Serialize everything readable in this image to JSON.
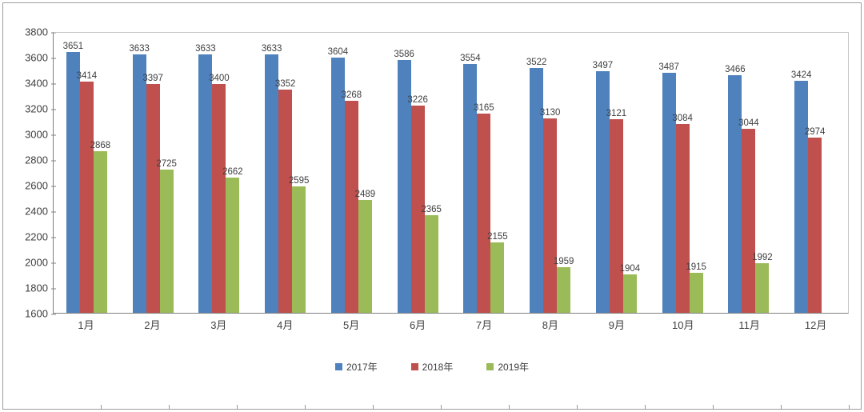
{
  "chart_data": {
    "type": "bar",
    "title": "",
    "categories": [
      "1月",
      "2月",
      "3月",
      "4月",
      "5月",
      "6月",
      "7月",
      "8月",
      "9月",
      "10月",
      "11月",
      "12月"
    ],
    "series": [
      {
        "name": "2017年",
        "color": "#4F81BD",
        "values": [
          3651,
          3633,
          3633,
          3633,
          3604,
          3586,
          3554,
          3522,
          3497,
          3487,
          3466,
          3424
        ]
      },
      {
        "name": "2018年",
        "color": "#C0504D",
        "values": [
          3414,
          3397,
          3400,
          3352,
          3268,
          3226,
          3165,
          3130,
          3121,
          3084,
          3044,
          2974
        ]
      },
      {
        "name": "2019年",
        "color": "#9BBB59",
        "values": [
          2868,
          2725,
          2662,
          2595,
          2489,
          2365,
          2155,
          1959,
          1904,
          1915,
          1992,
          null
        ]
      }
    ],
    "ylim": [
      1600,
      3800
    ],
    "ytick_step": 200,
    "xlabel": "",
    "ylabel": "",
    "grid": false,
    "legend_position": "bottom",
    "data_labels": true
  }
}
